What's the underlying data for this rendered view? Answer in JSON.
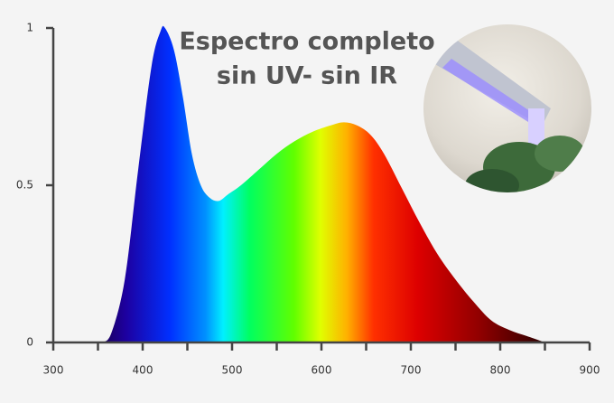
{
  "chart_data": {
    "type": "area",
    "title": [
      "Espectro completo",
      "sin UV- sin IR"
    ],
    "x": [
      355,
      365,
      380,
      395,
      410,
      420,
      425,
      435,
      445,
      455,
      465,
      475,
      485,
      495,
      510,
      530,
      550,
      570,
      590,
      610,
      625,
      640,
      655,
      670,
      690,
      710,
      730,
      750,
      770,
      790,
      810,
      830,
      850
    ],
    "values": [
      0,
      0.03,
      0.2,
      0.55,
      0.88,
      0.99,
      1.0,
      0.93,
      0.78,
      0.6,
      0.5,
      0.46,
      0.45,
      0.47,
      0.5,
      0.55,
      0.6,
      0.64,
      0.67,
      0.69,
      0.7,
      0.69,
      0.66,
      0.6,
      0.49,
      0.38,
      0.28,
      0.2,
      0.13,
      0.07,
      0.04,
      0.02,
      0
    ],
    "xlim": [
      300,
      900
    ],
    "xticks": [
      300,
      400,
      500,
      600,
      700,
      800,
      900
    ],
    "xminorticks": [
      350,
      450,
      550,
      650,
      750,
      850
    ],
    "ylim": [
      0,
      1
    ],
    "yticks": [
      0,
      0.5,
      1
    ]
  }
}
